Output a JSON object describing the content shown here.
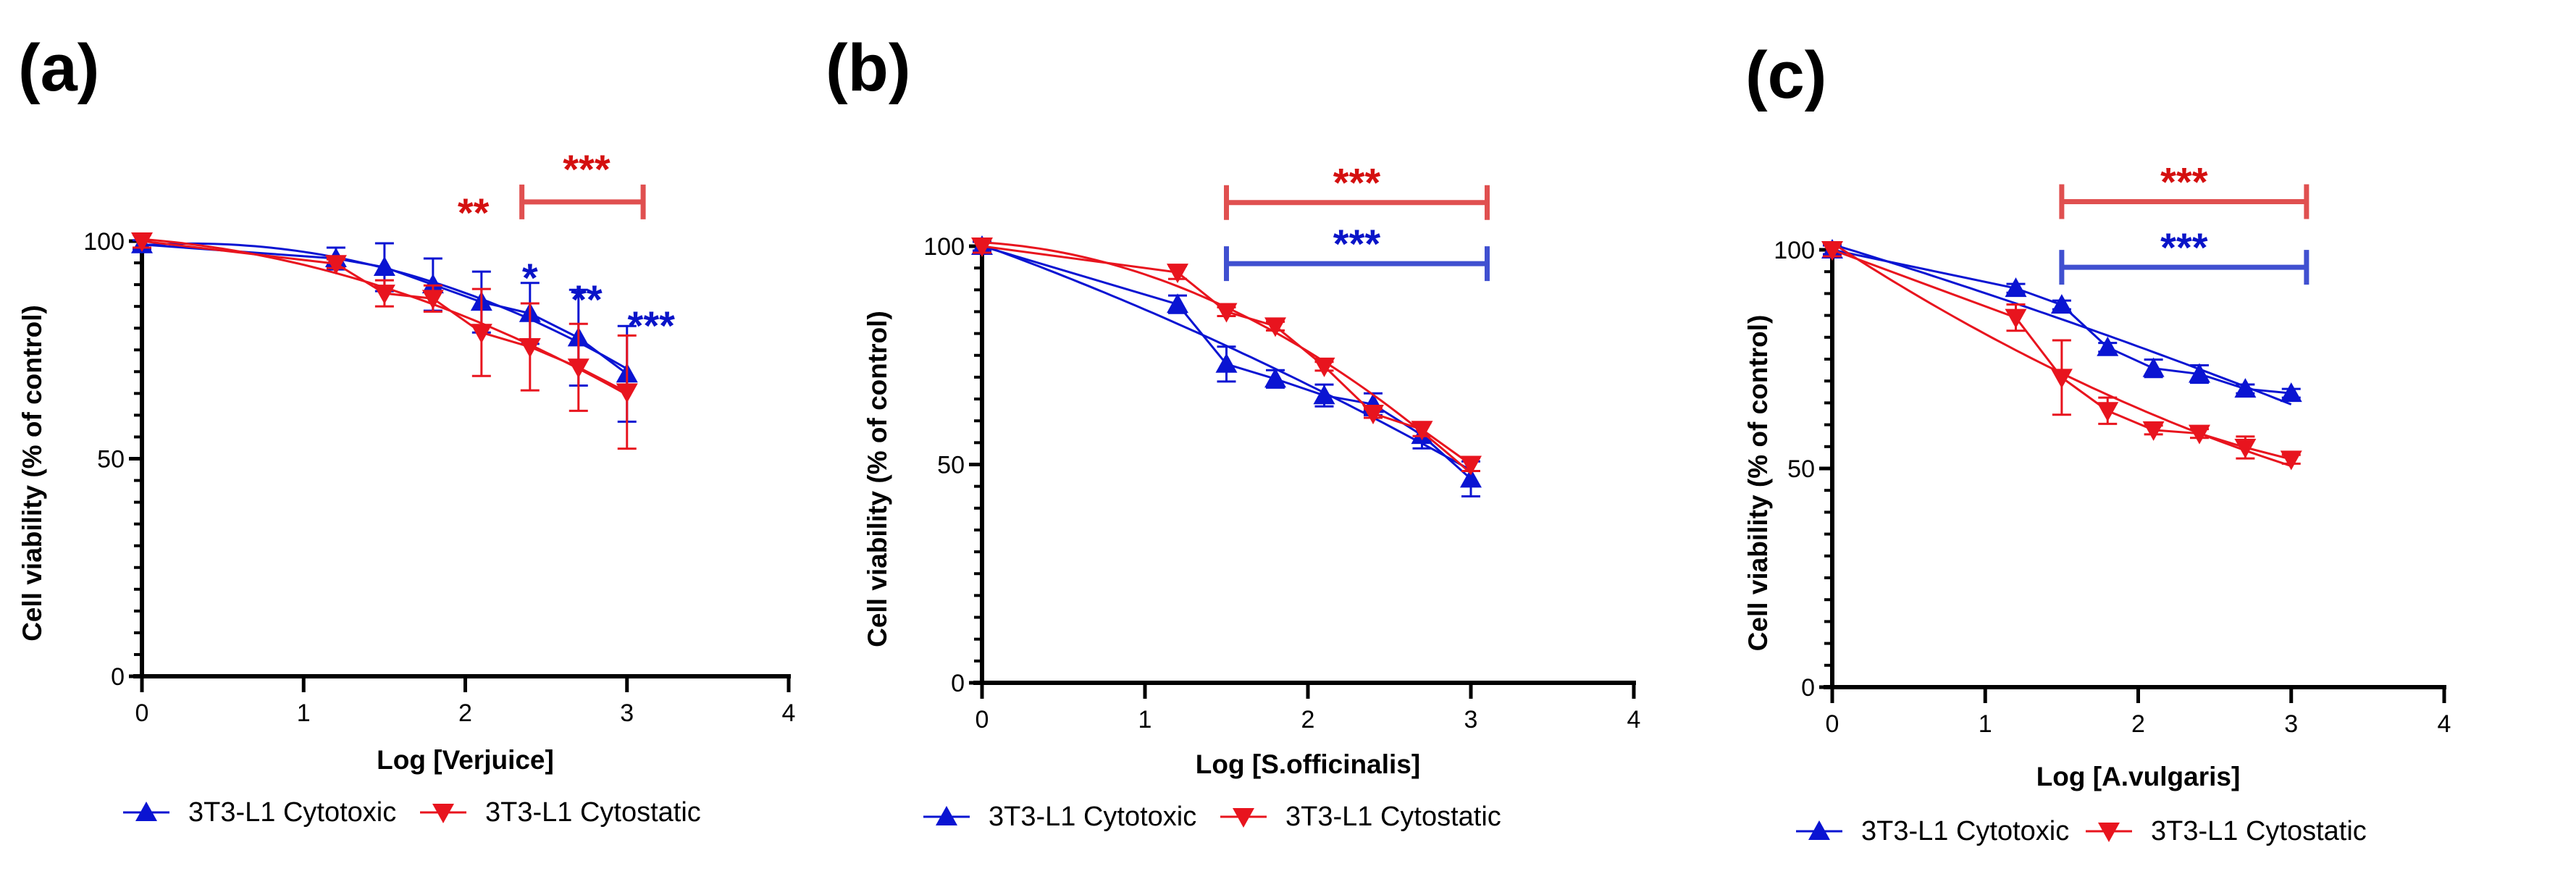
{
  "colors": {
    "cytotoxic": "#0a14d2",
    "cytostatic": "#e8141e",
    "bracket_red": "#e05050",
    "bracket_blue": "#4050d0",
    "star_red": "#d41010",
    "star_blue": "#0a14c8"
  },
  "chart_data": [
    {
      "type": "line",
      "panel_label": "(a)",
      "xlabel": "Log [Verjuice]",
      "ylabel": "Cell viability (% of control)",
      "xlim": [
        0,
        4
      ],
      "ylim": [
        0,
        100
      ],
      "xticks": [
        "0",
        "1",
        "2",
        "3",
        "4"
      ],
      "yticks": [
        "0",
        "50",
        "100"
      ],
      "x": [
        0,
        1.2,
        1.5,
        1.8,
        2.1,
        2.4,
        2.7,
        3.0
      ],
      "series": [
        {
          "name": "3T3-L1 Cytotoxic",
          "marker": "triangle-up",
          "values": [
            99.2,
            96,
            94,
            90,
            86,
            83.4,
            77.8,
            69.5
          ],
          "errors": [
            1,
            2.5,
            5.5,
            6,
            7,
            7,
            11,
            11
          ]
        },
        {
          "name": "3T3-L1 Cytostatic",
          "marker": "triangle-down",
          "values": [
            100,
            94.8,
            88,
            86.8,
            79,
            75.7,
            71,
            65.3
          ],
          "errors": [
            1.5,
            1,
            3,
            3,
            10,
            10,
            10,
            13
          ]
        }
      ],
      "brackets": [
        {
          "from": 2.35,
          "to": 3.1,
          "y": 109,
          "series": "cytostatic"
        }
      ],
      "annotations": [
        {
          "text": "***",
          "x": 2.75,
          "y": 117,
          "series": "cytostatic"
        },
        {
          "text": "**",
          "x": 2.05,
          "y": 107,
          "series": "cytostatic"
        },
        {
          "text": "*",
          "x": 2.4,
          "y": 92,
          "series": "cytotoxic"
        },
        {
          "text": "**",
          "x": 2.75,
          "y": 87,
          "series": "cytotoxic"
        },
        {
          "text": "***",
          "x": 3.15,
          "y": 81,
          "series": "cytotoxic"
        }
      ],
      "legend": "bottom"
    },
    {
      "type": "line",
      "panel_label": "(b)",
      "xlabel": "Log [S.officinalis]",
      "ylabel": "Cell viability (% of control)",
      "xlim": [
        0,
        4
      ],
      "ylim": [
        0,
        100
      ],
      "xticks": [
        "0",
        "1",
        "2",
        "3",
        "4"
      ],
      "yticks": [
        "0",
        "50",
        "100"
      ],
      "x": [
        0,
        1.2,
        1.5,
        1.8,
        2.1,
        2.4,
        2.7,
        3.0
      ],
      "series": [
        {
          "name": "3T3-L1 Cytotoxic",
          "marker": "triangle-up",
          "values": [
            100,
            86.7,
            73,
            69.6,
            65.8,
            63.8,
            56.7,
            46.7
          ],
          "errors": [
            1,
            2,
            4,
            2,
            2.5,
            2.5,
            3,
            4
          ]
        },
        {
          "name": "3T3-L1 Cytostatic",
          "marker": "triangle-down",
          "values": [
            100,
            94,
            85,
            81.7,
            72.5,
            61.7,
            58,
            50
          ],
          "errors": [
            1.5,
            1.5,
            1,
            1,
            1,
            1,
            1.5,
            1.5
          ]
        }
      ],
      "brackets": [
        {
          "from": 1.5,
          "to": 3.1,
          "y": 110,
          "series": "cytostatic"
        },
        {
          "from": 1.5,
          "to": 3.1,
          "y": 96,
          "series": "cytotoxic"
        }
      ],
      "annotations": [
        {
          "text": "***",
          "x": 2.3,
          "y": 115,
          "series": "cytostatic"
        },
        {
          "text": "***",
          "x": 2.3,
          "y": 101,
          "series": "cytotoxic"
        }
      ],
      "legend": "bottom"
    },
    {
      "type": "line",
      "panel_label": "(c)",
      "xlabel": "Log [A.vulgaris]",
      "ylabel": "Cell viability (% of control)",
      "xlim": [
        0,
        4
      ],
      "ylim": [
        0,
        100
      ],
      "xticks": [
        "0",
        "1",
        "2",
        "3",
        "4"
      ],
      "yticks": [
        "0",
        "50",
        "100"
      ],
      "x": [
        0,
        1.2,
        1.5,
        1.8,
        2.1,
        2.4,
        2.7,
        3.0
      ],
      "series": [
        {
          "name": "3T3-L1 Cytotoxic",
          "marker": "triangle-up",
          "values": [
            100,
            91.2,
            87.4,
            77.7,
            72.9,
            71.6,
            68.2,
            67.2
          ],
          "errors": [
            1,
            1,
            1,
            1,
            2,
            2,
            1,
            1
          ]
        },
        {
          "name": "3T3-L1 Cytostatic",
          "marker": "triangle-down",
          "values": [
            100,
            84.5,
            70.8,
            63.2,
            58.8,
            58,
            54.8,
            52.1
          ],
          "errors": [
            1.5,
            3,
            8.5,
            3,
            1,
            1,
            2.5,
            1
          ]
        }
      ],
      "brackets": [
        {
          "from": 1.5,
          "to": 3.1,
          "y": 111,
          "series": "cytostatic"
        },
        {
          "from": 1.5,
          "to": 3.1,
          "y": 96,
          "series": "cytotoxic"
        }
      ],
      "annotations": [
        {
          "text": "***",
          "x": 2.3,
          "y": 116,
          "series": "cytostatic"
        },
        {
          "text": "***",
          "x": 2.3,
          "y": 101,
          "series": "cytotoxic"
        }
      ],
      "legend": "bottom"
    }
  ]
}
